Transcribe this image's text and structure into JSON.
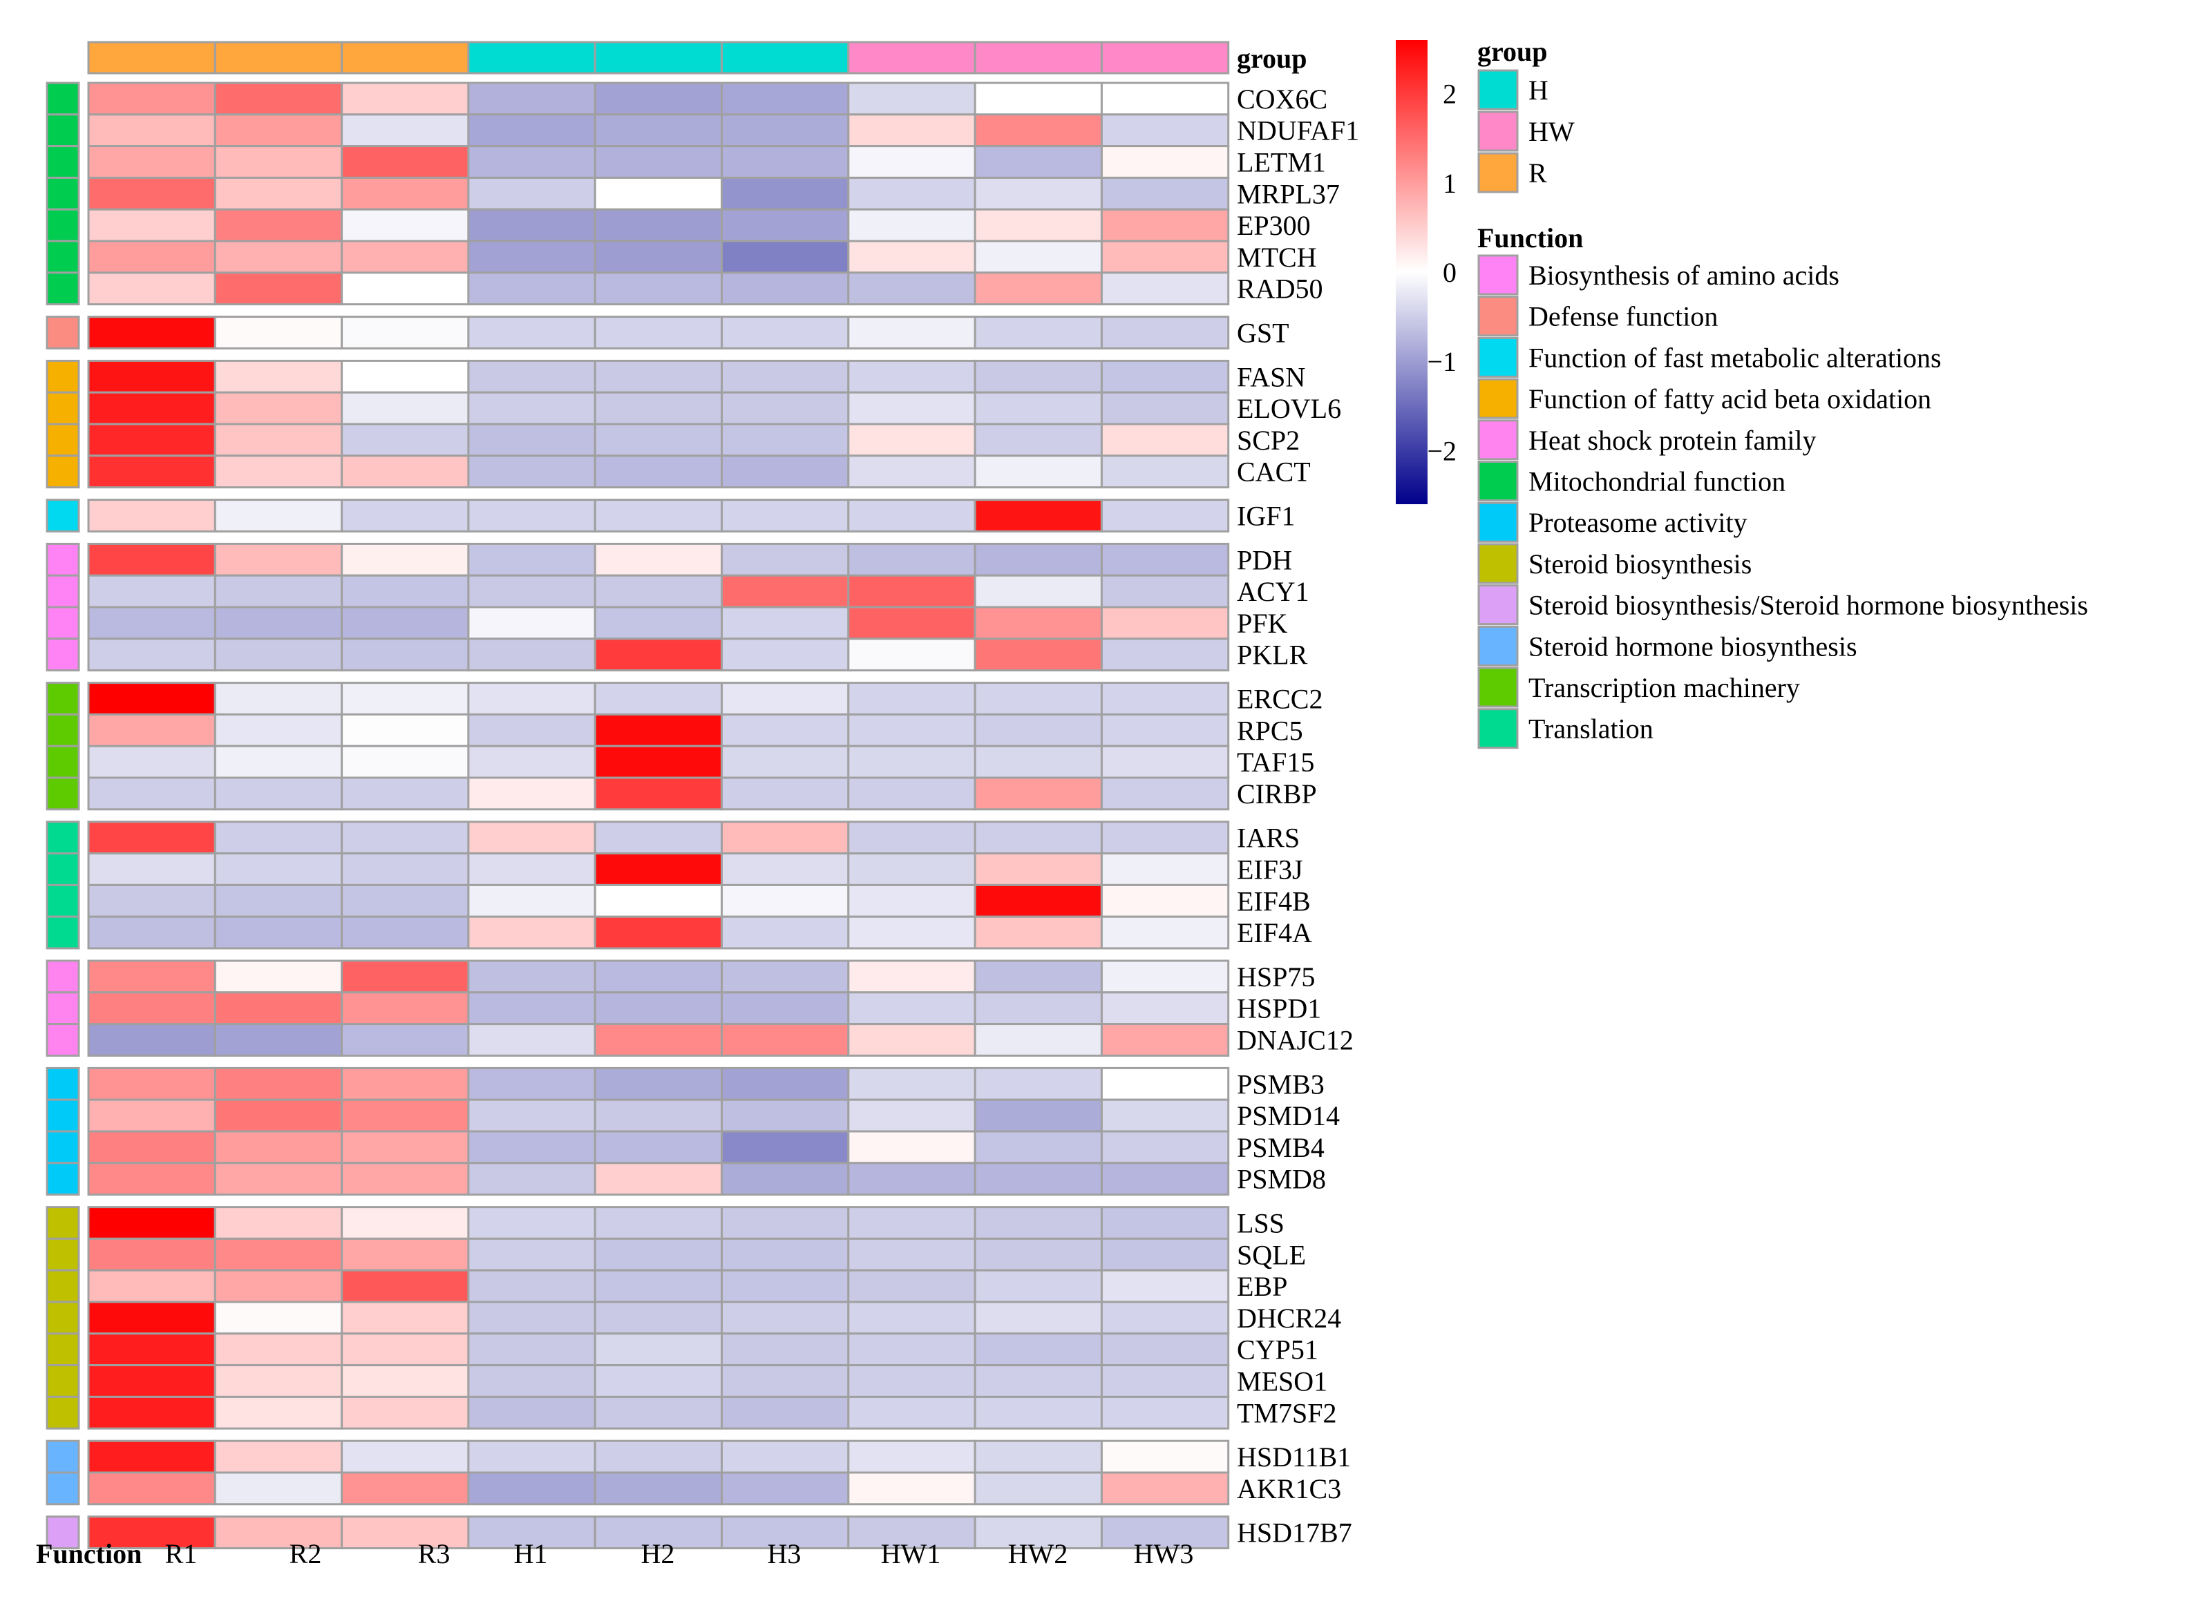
{
  "chart_data": {
    "type": "heatmap",
    "columns": [
      "R1",
      "R2",
      "R3",
      "H1",
      "H2",
      "H3",
      "HW1",
      "HW2",
      "HW3"
    ],
    "column_groups": [
      "R",
      "R",
      "R",
      "H",
      "H",
      "H",
      "HW",
      "HW",
      "HW"
    ],
    "function_axis_label": "Function",
    "group_track_label": "group",
    "colorbar": {
      "ticks": [
        2,
        1,
        0,
        -1,
        -2
      ],
      "tick_labels": [
        "2",
        "1",
        "0",
        "−1",
        "−2"
      ],
      "range": [
        -2.6,
        2.6
      ],
      "low_color": "#00008B",
      "mid_color": "#FFFFFF",
      "high_color": "#FF0000"
    },
    "groups": [
      {
        "name": "H",
        "color": "#00DCD2"
      },
      {
        "name": "HW",
        "color": "#FF88C8"
      },
      {
        "name": "R",
        "color": "#FFA63C"
      }
    ],
    "functions": [
      {
        "name": "Biosynthesis of amino acids",
        "color": "#FF83F5"
      },
      {
        "name": "Defense function",
        "color": "#FB8C82"
      },
      {
        "name": "Function of fast metabolic alterations",
        "color": "#00D9F0"
      },
      {
        "name": "Function of fatty acid beta oxidation",
        "color": "#F5B000"
      },
      {
        "name": "Heat shock protein family",
        "color": "#FF84F0"
      },
      {
        "name": "Mitochondrial function",
        "color": "#00CC4F"
      },
      {
        "name": "Proteasome activity",
        "color": "#00CAF8"
      },
      {
        "name": "Steroid biosynthesis",
        "color": "#BEC000"
      },
      {
        "name": "Steroid biosynthesis/Steroid hormone biosynthesis",
        "color": "#DCA0F6"
      },
      {
        "name": "Steroid hormone biosynthesis",
        "color": "#68B4FF"
      },
      {
        "name": "Transcription machinery",
        "color": "#5DCB00"
      },
      {
        "name": "Translation",
        "color": "#00DA91"
      }
    ],
    "blocks": [
      {
        "function": "Mitochondrial function",
        "rows": [
          {
            "gene": "COX6C",
            "values": [
              1.1,
              1.5,
              0.5,
              -0.8,
              -0.95,
              -0.9,
              -0.4,
              0.0,
              0.0
            ]
          },
          {
            "gene": "NDUFAF1",
            "values": [
              0.7,
              1.0,
              -0.3,
              -0.9,
              -0.85,
              -0.85,
              0.4,
              1.2,
              -0.45
            ]
          },
          {
            "gene": "LETM1",
            "values": [
              0.9,
              0.7,
              1.6,
              -0.75,
              -0.8,
              -0.8,
              -0.1,
              -0.7,
              0.1
            ]
          },
          {
            "gene": "MRPL37",
            "values": [
              1.5,
              0.6,
              1.0,
              -0.5,
              0.0,
              -1.1,
              -0.45,
              -0.35,
              -0.6
            ]
          },
          {
            "gene": "EP300",
            "values": [
              0.5,
              1.3,
              -0.1,
              -1.0,
              -1.0,
              -0.95,
              -0.15,
              0.3,
              0.9
            ]
          },
          {
            "gene": "MTCH",
            "values": [
              1.0,
              0.8,
              0.8,
              -0.95,
              -1.0,
              -1.3,
              0.3,
              -0.15,
              0.7
            ]
          },
          {
            "gene": "RAD50",
            "values": [
              0.5,
              1.5,
              0.0,
              -0.7,
              -0.7,
              -0.75,
              -0.65,
              0.9,
              -0.3
            ]
          }
        ]
      },
      {
        "function": "Defense function",
        "rows": [
          {
            "gene": "GST",
            "values": [
              2.5,
              0.05,
              -0.05,
              -0.45,
              -0.45,
              -0.45,
              -0.15,
              -0.45,
              -0.5
            ]
          }
        ]
      },
      {
        "function": "Function of fatty acid beta oxidation",
        "rows": [
          {
            "gene": "FASN",
            "values": [
              2.4,
              0.4,
              0.0,
              -0.55,
              -0.55,
              -0.55,
              -0.45,
              -0.55,
              -0.6
            ]
          },
          {
            "gene": "ELOVL6",
            "values": [
              2.3,
              0.7,
              -0.2,
              -0.5,
              -0.55,
              -0.55,
              -0.3,
              -0.45,
              -0.55
            ]
          },
          {
            "gene": "SCP2",
            "values": [
              2.2,
              0.6,
              -0.5,
              -0.65,
              -0.6,
              -0.6,
              0.3,
              -0.5,
              0.35
            ]
          },
          {
            "gene": "CACT",
            "values": [
              2.1,
              0.5,
              0.6,
              -0.65,
              -0.7,
              -0.75,
              -0.35,
              -0.15,
              -0.4
            ]
          }
        ]
      },
      {
        "function": "Function of fast metabolic alterations",
        "rows": [
          {
            "gene": "IGF1",
            "values": [
              0.5,
              -0.15,
              -0.45,
              -0.45,
              -0.45,
              -0.45,
              -0.45,
              2.4,
              -0.45
            ]
          }
        ]
      },
      {
        "function": "Biosynthesis of amino acids",
        "rows": [
          {
            "gene": "PDH",
            "values": [
              1.9,
              0.7,
              0.15,
              -0.6,
              0.2,
              -0.55,
              -0.65,
              -0.75,
              -0.7
            ]
          },
          {
            "gene": "ACY1",
            "values": [
              -0.5,
              -0.55,
              -0.6,
              -0.55,
              -0.55,
              1.5,
              1.6,
              -0.2,
              -0.55
            ]
          },
          {
            "gene": "PFK",
            "values": [
              -0.7,
              -0.75,
              -0.75,
              -0.1,
              -0.6,
              -0.45,
              1.6,
              1.1,
              0.6
            ]
          },
          {
            "gene": "PKLR",
            "values": [
              -0.5,
              -0.55,
              -0.6,
              -0.55,
              2.0,
              -0.45,
              -0.05,
              1.4,
              -0.5
            ]
          }
        ]
      },
      {
        "function": "Transcription machinery",
        "rows": [
          {
            "gene": "ERCC2",
            "values": [
              2.6,
              -0.2,
              -0.15,
              -0.3,
              -0.45,
              -0.25,
              -0.45,
              -0.45,
              -0.45
            ]
          },
          {
            "gene": "RPC5",
            "values": [
              0.9,
              -0.25,
              -0.02,
              -0.5,
              2.5,
              -0.45,
              -0.45,
              -0.5,
              -0.45
            ]
          },
          {
            "gene": "TAF15",
            "values": [
              -0.35,
              -0.15,
              -0.05,
              -0.35,
              2.5,
              -0.4,
              -0.4,
              -0.4,
              -0.35
            ]
          },
          {
            "gene": "CIRBP",
            "values": [
              -0.5,
              -0.5,
              -0.5,
              0.2,
              2.0,
              -0.5,
              -0.5,
              1.0,
              -0.5
            ]
          }
        ]
      },
      {
        "function": "Translation",
        "rows": [
          {
            "gene": "IARS",
            "values": [
              1.9,
              -0.5,
              -0.5,
              0.5,
              -0.5,
              0.7,
              -0.5,
              -0.5,
              -0.5
            ]
          },
          {
            "gene": "EIF3J",
            "values": [
              -0.35,
              -0.45,
              -0.5,
              -0.35,
              2.5,
              -0.35,
              -0.4,
              0.6,
              -0.15
            ]
          },
          {
            "gene": "EIF4B",
            "values": [
              -0.55,
              -0.6,
              -0.6,
              -0.15,
              0.0,
              -0.1,
              -0.25,
              2.5,
              0.1
            ]
          },
          {
            "gene": "EIF4A",
            "values": [
              -0.65,
              -0.7,
              -0.7,
              0.5,
              2.0,
              -0.45,
              -0.25,
              0.6,
              -0.15
            ]
          }
        ]
      },
      {
        "function": "Heat shock protein family",
        "rows": [
          {
            "gene": "HSP75",
            "values": [
              1.2,
              0.1,
              1.6,
              -0.65,
              -0.7,
              -0.65,
              0.2,
              -0.65,
              -0.15
            ]
          },
          {
            "gene": "HSPD1",
            "values": [
              1.3,
              1.4,
              1.1,
              -0.7,
              -0.75,
              -0.75,
              -0.45,
              -0.5,
              -0.35
            ]
          },
          {
            "gene": "DNAJC12",
            "values": [
              -1.0,
              -0.95,
              -0.7,
              -0.35,
              1.2,
              1.2,
              0.4,
              -0.2,
              0.9
            ]
          }
        ]
      },
      {
        "function": "Proteasome activity",
        "rows": [
          {
            "gene": "PSMB3",
            "values": [
              1.1,
              1.3,
              1.0,
              -0.7,
              -0.85,
              -0.95,
              -0.4,
              -0.45,
              0.0
            ]
          },
          {
            "gene": "PSMD14",
            "values": [
              0.8,
              1.4,
              1.2,
              -0.5,
              -0.55,
              -0.65,
              -0.35,
              -0.85,
              -0.4
            ]
          },
          {
            "gene": "PSMB4",
            "values": [
              1.3,
              1.0,
              0.9,
              -0.7,
              -0.7,
              -1.2,
              0.1,
              -0.6,
              -0.5
            ]
          },
          {
            "gene": "PSMD8",
            "values": [
              1.2,
              0.9,
              0.9,
              -0.55,
              0.5,
              -0.85,
              -0.75,
              -0.75,
              -0.75
            ]
          }
        ]
      },
      {
        "function": "Steroid biosynthesis",
        "rows": [
          {
            "gene": "LSS",
            "values": [
              2.6,
              0.5,
              0.2,
              -0.45,
              -0.5,
              -0.55,
              -0.5,
              -0.55,
              -0.6
            ]
          },
          {
            "gene": "SQLE",
            "values": [
              1.3,
              1.2,
              0.9,
              -0.5,
              -0.6,
              -0.6,
              -0.5,
              -0.55,
              -0.6
            ]
          },
          {
            "gene": "EBP",
            "values": [
              0.7,
              0.9,
              1.7,
              -0.55,
              -0.6,
              -0.6,
              -0.55,
              -0.45,
              -0.3
            ]
          },
          {
            "gene": "DHCR24",
            "values": [
              2.5,
              0.05,
              0.5,
              -0.55,
              -0.55,
              -0.5,
              -0.45,
              -0.35,
              -0.45
            ]
          },
          {
            "gene": "CYP51",
            "values": [
              2.3,
              0.5,
              0.5,
              -0.55,
              -0.4,
              -0.55,
              -0.5,
              -0.6,
              -0.55
            ]
          },
          {
            "gene": "MESO1",
            "values": [
              2.3,
              0.4,
              0.3,
              -0.55,
              -0.45,
              -0.55,
              -0.5,
              -0.5,
              -0.5
            ]
          },
          {
            "gene": "TM7SF2",
            "values": [
              2.3,
              0.3,
              0.5,
              -0.65,
              -0.55,
              -0.65,
              -0.45,
              -0.45,
              -0.45
            ]
          }
        ]
      },
      {
        "function": "Steroid hormone biosynthesis",
        "rows": [
          {
            "gene": "HSD11B1",
            "values": [
              2.3,
              0.5,
              -0.3,
              -0.45,
              -0.5,
              -0.45,
              -0.3,
              -0.4,
              0.05
            ]
          },
          {
            "gene": "AKR1C3",
            "values": [
              1.2,
              -0.2,
              1.1,
              -0.9,
              -0.85,
              -0.75,
              0.1,
              -0.4,
              0.8
            ]
          }
        ]
      },
      {
        "function": "Steroid biosynthesis/Steroid hormone biosynthesis",
        "rows": [
          {
            "gene": "HSD17B7",
            "values": [
              2.1,
              0.7,
              0.6,
              -0.6,
              -0.6,
              -0.6,
              -0.55,
              -0.4,
              -0.6
            ]
          }
        ]
      }
    ]
  }
}
